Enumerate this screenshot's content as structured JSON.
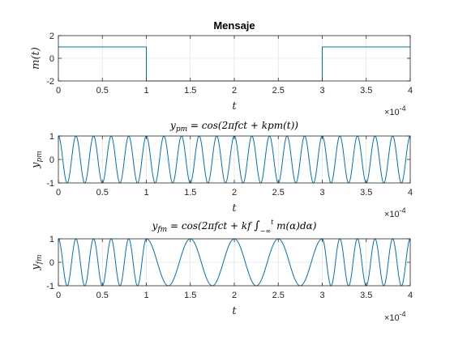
{
  "chart_data": [
    {
      "type": "line",
      "title": "Mensaje",
      "xlabel": "t",
      "ylabel": "m(t)",
      "xlim": [
        0,
        0.0004
      ],
      "ylim": [
        -2,
        2
      ],
      "xticks": [
        "0",
        "0.5",
        "1",
        "1.5",
        "2",
        "2.5",
        "3",
        "3.5",
        "4"
      ],
      "yticks": [
        "2",
        "0",
        "-2"
      ],
      "x_exponent": "×10",
      "x_exponent_power": "-4",
      "grid": true,
      "color": "#0072BD",
      "series": [
        {
          "x": [
            0,
            0.0001,
            0.0001,
            0.0003,
            0.0003,
            0.0004
          ],
          "y": [
            1,
            1,
            -2,
            -2,
            1,
            1
          ]
        }
      ]
    },
    {
      "type": "line",
      "title": "y_pm = cos(2πfct + kpm(t))",
      "xlabel": "t",
      "ylabel": "y_pm",
      "xlim": [
        0,
        0.0004
      ],
      "ylim": [
        -1,
        1
      ],
      "xticks": [
        "0",
        "0.5",
        "1",
        "1.5",
        "2",
        "2.5",
        "3",
        "3.5",
        "4"
      ],
      "yticks": [
        "1",
        "0",
        "-1"
      ],
      "x_exponent": "×10",
      "x_exponent_power": "-4",
      "grid": true,
      "color": "#0072BD",
      "carrier_frequency_hz": 50000,
      "message_levels": [
        1,
        -2,
        1
      ],
      "message_breakpoints": [
        0.0001,
        0.0003
      ]
    },
    {
      "type": "line",
      "title": "y_fm = cos(2πfct + kf ∫_-∞^t m(α)dα)",
      "xlabel": "t",
      "ylabel": "y_fm",
      "xlim": [
        0,
        0.0004
      ],
      "ylim": [
        -1,
        1
      ],
      "xticks": [
        "0",
        "0.5",
        "1",
        "1.5",
        "2",
        "2.5",
        "3",
        "3.5",
        "4"
      ],
      "yticks": [
        "1",
        "0",
        "-1"
      ],
      "x_exponent": "×10",
      "x_exponent_power": "-4",
      "grid": true,
      "color": "#0072BD",
      "frequency_high_hz": 50000,
      "frequency_low_hz": 20000,
      "message_breakpoints": [
        0.0001,
        0.0003
      ]
    }
  ]
}
